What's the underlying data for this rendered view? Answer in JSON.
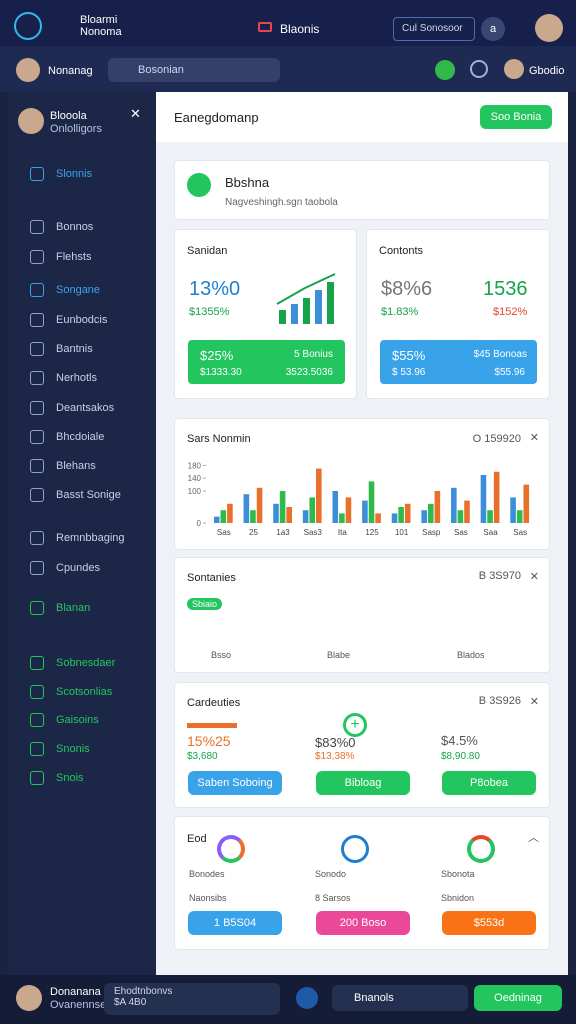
{
  "header": {
    "brand": [
      "Bloarmi",
      "Nonoma"
    ],
    "tab": "Blaonis",
    "search": "Cul Sonosoor",
    "badge": "a"
  },
  "subheader": {
    "user": "Nonanag",
    "search": "Bosonian",
    "right_user": "Gbodio"
  },
  "sidebar": {
    "name": "Blooola",
    "sub": "Onlolligors",
    "top_item": "Slonnis",
    "items": [
      "Bonnos",
      "Flehsts",
      "Songane",
      "Eunbodcis",
      "Bantnis",
      "Nerhotls",
      "Deantsakos",
      "Bhcdoiale",
      "Blehans",
      "Basst Sonige",
      "Remnbbaging",
      "Cpundes"
    ],
    "active": "Blanan",
    "bottom_items": [
      "Sobnesdaer",
      "Scotsonlias",
      "Gaisoins",
      "Snonis",
      "Snois"
    ]
  },
  "main": {
    "title": "Eanegdomanp",
    "button": "Soo Bonia",
    "banner_title": "Bbshna",
    "banner_sub": "Nagveshingh.sgn taobola",
    "card1": {
      "title": "Sanidan",
      "value": "13%0",
      "change": "$1355%",
      "bar_value": "$25%",
      "bar_right": "5 Bonius",
      "bar_sub": "$1333.30",
      "bar_sub_right": "3523.5036"
    },
    "card2": {
      "title": "Contonts",
      "value": "$8%6",
      "change": "$1.83%",
      "right_value": "1536",
      "right_change": "$152%",
      "bar_value": "$55%",
      "bar_right": "$45 Bonoas",
      "bar_sub": "$ 53.96",
      "bar_sub_right": "$55.96"
    },
    "card4": {
      "title": "Sontanies",
      "right": "B 3S970",
      "labels": [
        "Bsso",
        "Blabe",
        "Blados"
      ],
      "pill": "Sbiaio"
    },
    "card5": {
      "title": "Cardeuties",
      "right": "B 3S926",
      "v1": "15%25",
      "s1": "$3,680",
      "v2": "$83%0",
      "s2": "$13,38%",
      "v3": "$4.5%",
      "s3": "$8,90.80",
      "b1": "Saben Soboing",
      "b2": "Bibloag",
      "b3": "P8obea"
    },
    "card6": {
      "title": "Eod",
      "labels": [
        "Bonodes",
        "Sonodo",
        "Sbonota"
      ],
      "sub": [
        "Naonsibs",
        "8 Sarsos",
        "Sbnidon"
      ],
      "b1": "1 B5S04",
      "b2": "200 Boso",
      "b3": "$553d"
    }
  },
  "chart_data": {
    "type": "bar",
    "title": "Sars Nonmin",
    "right": "O 159920",
    "categories": [
      "Sas",
      "25",
      "1a3",
      "Sas3",
      "Ita",
      "125",
      "101",
      "Sasp",
      "Sas",
      "Saa",
      "Sas"
    ],
    "series": [
      {
        "name": "Blue",
        "color": "#3b8fd9",
        "values": [
          20,
          90,
          60,
          40,
          100,
          70,
          30,
          40,
          110,
          150,
          80
        ]
      },
      {
        "name": "Green",
        "color": "#2fba4a",
        "values": [
          40,
          40,
          100,
          80,
          30,
          130,
          50,
          60,
          40,
          40,
          40
        ]
      },
      {
        "name": "Orange",
        "color": "#e8702a",
        "values": [
          60,
          110,
          50,
          170,
          80,
          30,
          60,
          100,
          70,
          160,
          120
        ]
      }
    ],
    "ylim": [
      0,
      200
    ],
    "yticks": [
      0,
      100,
      140,
      180
    ]
  },
  "bottom": {
    "user": "Donanana",
    "sub": "Ovanennse",
    "field": "Ehodtnbonvs",
    "field2": "$A 4B0",
    "link": "Bnanols",
    "button": "Oedninag"
  }
}
